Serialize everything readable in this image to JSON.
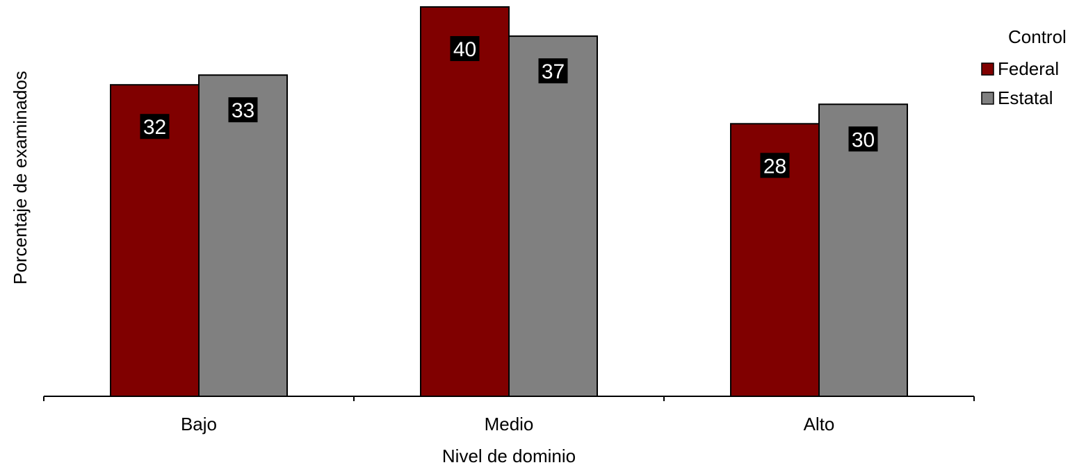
{
  "chart_data": {
    "type": "bar",
    "categories": [
      "Bajo",
      "Medio",
      "Alto"
    ],
    "series": [
      {
        "name": "Federal",
        "values": [
          32,
          40,
          28
        ],
        "color": "#800000"
      },
      {
        "name": "Estatal",
        "values": [
          33,
          37,
          30
        ],
        "color": "#808080"
      }
    ],
    "xlabel": "Nivel de dominio",
    "ylabel": "Porcentaje de examinados",
    "ylim": [
      0,
      40
    ],
    "grid": false,
    "legend": {
      "title": "Control",
      "position": "top-right"
    },
    "data_labels": true
  }
}
